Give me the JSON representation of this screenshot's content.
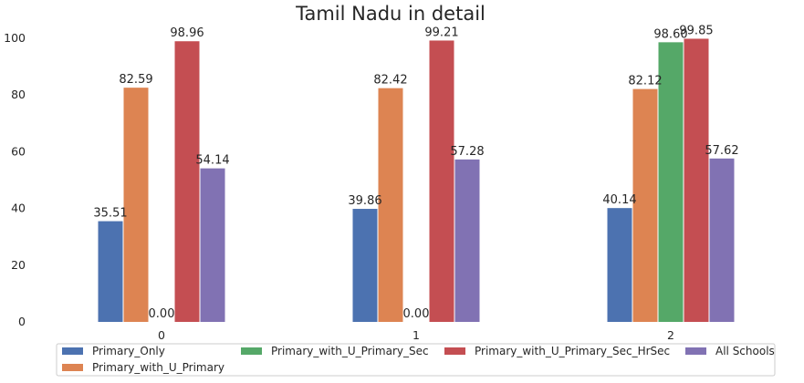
{
  "chart_data": {
    "type": "bar",
    "title": "Tamil Nadu in detail",
    "xlabel": "",
    "ylabel": "",
    "categories": [
      "0",
      "1",
      "2"
    ],
    "series": [
      {
        "name": "Primary_Only",
        "color": "#4c72b0",
        "values": [
          35.51,
          39.86,
          40.14
        ],
        "labels": [
          "35.51",
          "39.86",
          "40.14"
        ]
      },
      {
        "name": "Primary_with_U_Primary",
        "color": "#dd8452",
        "values": [
          82.59,
          82.42,
          82.12
        ],
        "labels": [
          "82.59",
          "82.42",
          "82.12"
        ]
      },
      {
        "name": "Primary_with_U_Primary_Sec",
        "color": "#55a868",
        "values": [
          0,
          0,
          98.6
        ],
        "labels": [
          "0.00",
          "0.00",
          "98.60"
        ]
      },
      {
        "name": "Primary_with_U_Primary_Sec_HrSec",
        "color": "#c44e52",
        "values": [
          98.96,
          99.21,
          99.85
        ],
        "labels": [
          "98.96",
          "99.21",
          "99.85"
        ]
      },
      {
        "name": "All Schools",
        "color": "#8172b3",
        "values": [
          54.14,
          57.28,
          57.62
        ],
        "labels": [
          "54.14",
          "57.28",
          "57.62"
        ]
      }
    ],
    "ylim": [
      0,
      100
    ],
    "yticks": [
      "0",
      "20",
      "40",
      "60",
      "80",
      "100"
    ],
    "grid": false,
    "legend_placement": "bottom"
  }
}
